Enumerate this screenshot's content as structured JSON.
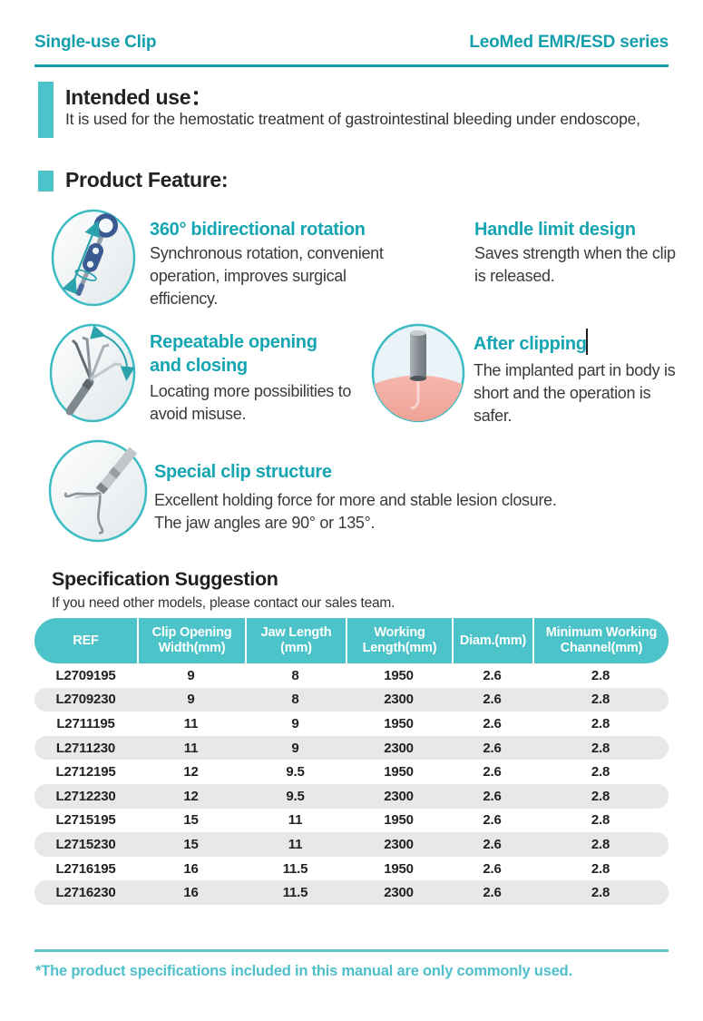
{
  "colors": {
    "teal_dark": "#139fab",
    "teal_title": "#16a5b2",
    "teal_light": "#4cc3c9",
    "teal_footer": "#4fc0cb",
    "row_gray": "#e8e8e8",
    "text_dark": "#2b2b2b"
  },
  "header": {
    "left": "Single-use Clip",
    "right": "LeoMed EMR/ESD series"
  },
  "intended_use": {
    "title": "Intended use：",
    "body": "It is used for the hemostatic treatment of gastrointestinal bleeding under endoscope,"
  },
  "product_feature": {
    "title": "Product Feature:"
  },
  "features": [
    {
      "icon": "rotation-handle-icon",
      "title": "360° bidirectional rotation",
      "body": "Synchronous rotation, convenient operation, improves surgical efficiency."
    },
    {
      "icon": null,
      "title": "Handle limit design",
      "body": "Saves strength when the clip is released."
    },
    {
      "icon": "clip-jaws-fan-icon",
      "title": "Repeatable opening and closing",
      "body": "Locating more possibilities to avoid misuse."
    },
    {
      "icon": "implanted-clip-icon",
      "title": "After clipping",
      "body": "The implanted part in body is short and the operation is safer."
    },
    {
      "icon": "open-clip-icon",
      "title": "Special clip structure",
      "body": "Excellent holding force for more and stable lesion closure.\nThe jaw angles are 90° or 135°."
    }
  ],
  "specification": {
    "title": "Specification Suggestion",
    "subtitle": "If you need other models, please contact our sales team.",
    "table": {
      "headers": [
        "REF",
        "Clip Opening Width(mm)",
        "Jaw Length (mm)",
        "Working Length(mm)",
        "Diam.(mm)",
        "Minimum Working Channel(mm)"
      ],
      "rows": [
        [
          "L2709195",
          "9",
          "8",
          "1950",
          "2.6",
          "2.8"
        ],
        [
          "L2709230",
          "9",
          "8",
          "2300",
          "2.6",
          "2.8"
        ],
        [
          "L2711195",
          "11",
          "9",
          "1950",
          "2.6",
          "2.8"
        ],
        [
          "L2711230",
          "11",
          "9",
          "2300",
          "2.6",
          "2.8"
        ],
        [
          "L2712195",
          "12",
          "9.5",
          "1950",
          "2.6",
          "2.8"
        ],
        [
          "L2712230",
          "12",
          "9.5",
          "2300",
          "2.6",
          "2.8"
        ],
        [
          "L2715195",
          "15",
          "11",
          "1950",
          "2.6",
          "2.8"
        ],
        [
          "L2715230",
          "15",
          "11",
          "2300",
          "2.6",
          "2.8"
        ],
        [
          "L2716195",
          "16",
          "11.5",
          "1950",
          "2.6",
          "2.8"
        ],
        [
          "L2716230",
          "16",
          "11.5",
          "2300",
          "2.6",
          "2.8"
        ]
      ]
    }
  },
  "footer": {
    "note": "*The product specifications included in this manual are only commonly used."
  }
}
